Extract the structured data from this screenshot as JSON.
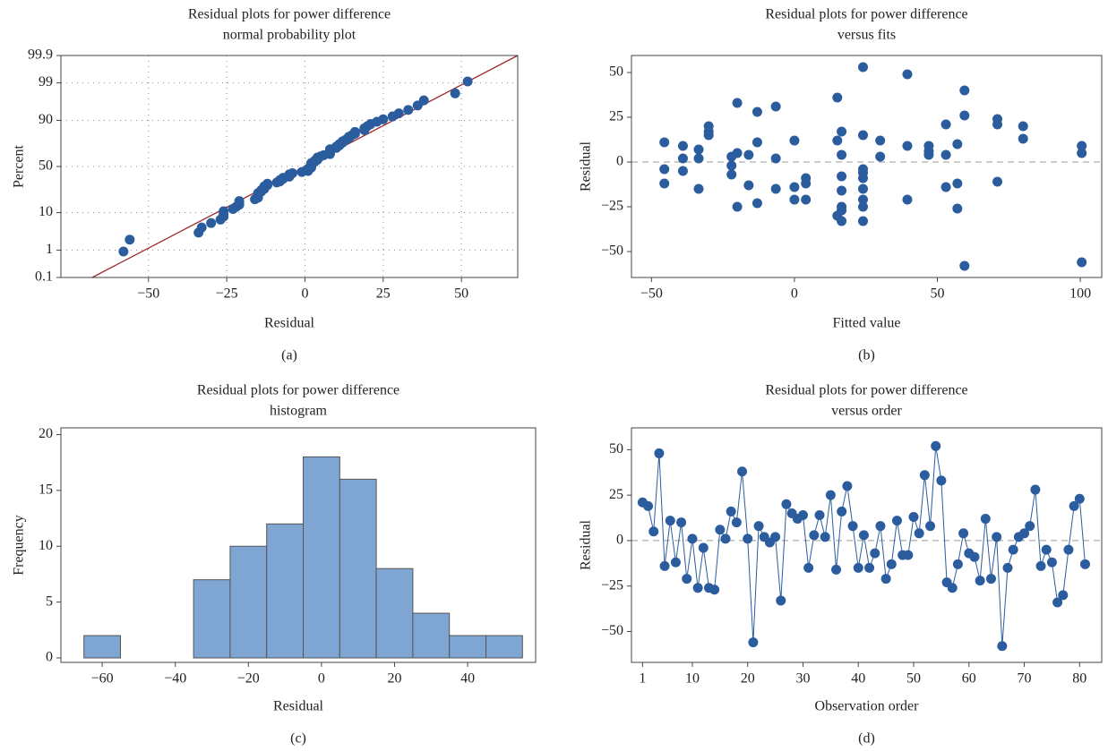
{
  "chart_data": [
    {
      "type": "probability",
      "title": "Residual plots for power difference",
      "subtitle": "normal probability plot",
      "x_label": "Residual",
      "y_label": "Percent",
      "caption": "(a)",
      "yscale": "normal",
      "grid": true,
      "color": "#2b5d9e",
      "xlim": [
        -78,
        68
      ],
      "ylim": [
        0.1,
        99.9
      ],
      "xticks": [
        {
          "value": -50,
          "label": "−50"
        },
        {
          "value": -25,
          "label": "−25"
        },
        0,
        25,
        50
      ],
      "yticks": [
        0.1,
        1,
        10,
        50,
        90,
        99,
        99.9
      ],
      "fit_line": {
        "color": "#9e2a2b",
        "x": [
          -68,
          68
        ],
        "y": [
          0.1,
          99.9
        ]
      },
      "x": [
        -58,
        -56,
        -34,
        -33,
        -30,
        -27,
        -26,
        -26,
        -26,
        -23,
        -22,
        -21,
        -21,
        -21,
        -16,
        -15,
        -15,
        -15,
        -15,
        -14,
        -14,
        -13,
        -13,
        -13,
        -12,
        -12,
        -9,
        -8,
        -8,
        -7,
        -7,
        -5,
        -5,
        -5,
        -4,
        -1,
        1,
        1,
        1,
        2,
        2,
        2,
        2,
        2,
        3,
        3,
        4,
        4,
        4,
        5,
        6,
        8,
        8,
        8,
        8,
        8,
        10,
        10,
        11,
        11,
        12,
        12,
        13,
        14,
        14,
        15,
        16,
        16,
        19,
        19,
        20,
        21,
        23,
        25,
        28,
        30,
        33,
        36,
        38,
        48,
        52
      ],
      "values": [
        0.9,
        2.1,
        3.3,
        4.5,
        5.8,
        7.0,
        8.2,
        9.5,
        10.7,
        11.9,
        13.1,
        14.4,
        15.6,
        16.8,
        18.1,
        19.3,
        20.5,
        21.7,
        23.0,
        24.2,
        25.4,
        26.7,
        27.9,
        29.1,
        30.3,
        31.6,
        32.8,
        34.0,
        35.3,
        36.5,
        37.7,
        38.9,
        40.2,
        41.4,
        42.6,
        43.9,
        45.1,
        46.3,
        47.5,
        48.8,
        50.0,
        51.2,
        52.5,
        53.7,
        54.9,
        56.1,
        57.4,
        58.6,
        59.8,
        61.1,
        62.3,
        63.5,
        64.7,
        66.0,
        67.2,
        68.4,
        69.7,
        70.9,
        72.1,
        73.3,
        74.6,
        75.8,
        77.0,
        78.3,
        79.5,
        80.7,
        81.9,
        83.2,
        84.4,
        85.6,
        86.9,
        88.1,
        89.3,
        90.5,
        91.8,
        93.0,
        94.2,
        95.5,
        96.7,
        97.9,
        99.1
      ]
    },
    {
      "type": "scatter",
      "title": "Residual plots for power difference",
      "subtitle": "versus fits",
      "x_label": "Fitted value",
      "y_label": "Residual",
      "caption": "(b)",
      "color": "#2b5d9e",
      "reference_line": 0,
      "xlim": [
        -57,
        107.5
      ],
      "ylim": [
        -64.5,
        59.5
      ],
      "xticks": [
        {
          "value": -50,
          "label": "−50"
        },
        0,
        50,
        100
      ],
      "yticks": [
        {
          "value": -50,
          "label": "−50"
        },
        {
          "value": -25,
          "label": "−25"
        },
        0,
        25,
        50
      ],
      "x": [
        -45.5,
        -45.5,
        -45.5,
        -39,
        -39,
        -39,
        -33.5,
        -33.5,
        -33.5,
        -30,
        -30,
        -30,
        -22,
        -22,
        -22,
        -20,
        -20,
        -20,
        -16,
        -16,
        -13,
        -13,
        -13,
        -6.5,
        -6.5,
        -6.5,
        0,
        0,
        0,
        4,
        4,
        4,
        15,
        15,
        15,
        16.5,
        16.5,
        16.5,
        16.5,
        16.5,
        16.5,
        16.5,
        24,
        24,
        24,
        24,
        24,
        24,
        24,
        24,
        24,
        30,
        30,
        39.5,
        39.5,
        39.5,
        47,
        47,
        47,
        53,
        53,
        53,
        57,
        57,
        57,
        59.5,
        59.5,
        59.5,
        71,
        71,
        71,
        80,
        80,
        100.5,
        100.5,
        100.5
      ],
      "values": [
        11,
        -4,
        -12,
        9,
        2,
        -5,
        7,
        2,
        -15,
        20,
        17,
        15,
        3,
        -2,
        -7,
        33,
        5,
        -25,
        4,
        -13,
        28,
        11,
        -23,
        31,
        2,
        -15,
        12,
        -14,
        -21,
        -9,
        -12,
        -21,
        36,
        12,
        -30,
        17,
        4,
        -8,
        -16,
        -25,
        -33,
        -27,
        53,
        15,
        -4,
        -6,
        -9,
        -15,
        -21,
        -25,
        -33,
        12,
        3,
        49,
        9,
        -21,
        9,
        6,
        4,
        21,
        4,
        -14,
        10,
        -12,
        -26,
        40,
        26,
        -58,
        24,
        21,
        -11,
        20,
        13,
        9,
        5,
        -56
      ]
    },
    {
      "type": "histogram",
      "title": "Residual plots for power difference",
      "subtitle": "histogram",
      "x_label": "Residual",
      "y_label": "Frequency",
      "caption": "(c)",
      "color": "#7fa5d3",
      "xlim": [
        -71.3,
        58.6
      ],
      "ylim": [
        -0.4,
        20.6
      ],
      "xticks": [
        {
          "value": -60,
          "label": "−60"
        },
        {
          "value": -40,
          "label": "−40"
        },
        {
          "value": -20,
          "label": "−20"
        },
        0,
        20,
        40
      ],
      "yticks": [
        0,
        5,
        10,
        15,
        20
      ],
      "bins": [
        -65,
        -55,
        -45,
        -35,
        -25,
        -15,
        -5,
        5,
        15,
        25,
        35,
        45,
        55
      ],
      "values": [
        2,
        0,
        0,
        7,
        10,
        12,
        18,
        16,
        8,
        4,
        2,
        2
      ]
    },
    {
      "type": "line",
      "title": "Residual plots for power difference",
      "subtitle": "versus order",
      "x_label": "Observation order",
      "y_label": "Residual",
      "caption": "(d)",
      "color": "#2b5d9e",
      "reference_line": 0,
      "xlim": [
        -1,
        84
      ],
      "ylim": [
        -67,
        62
      ],
      "xticks": [
        1,
        10,
        20,
        30,
        40,
        50,
        60,
        70,
        80
      ],
      "yticks": [
        {
          "value": -50,
          "label": "−50"
        },
        {
          "value": -25,
          "label": "−25"
        },
        0,
        25,
        50
      ],
      "x": [
        1,
        2,
        3,
        4,
        5,
        6,
        7,
        8,
        9,
        10,
        11,
        12,
        13,
        14,
        15,
        16,
        17,
        18,
        19,
        20,
        21,
        22,
        23,
        24,
        25,
        26,
        27,
        28,
        29,
        30,
        31,
        32,
        33,
        34,
        35,
        36,
        37,
        38,
        39,
        40,
        41,
        42,
        43,
        44,
        45,
        46,
        47,
        48,
        49,
        50,
        51,
        52,
        53,
        54,
        55,
        56,
        57,
        58,
        59,
        60,
        61,
        62,
        63,
        64,
        65,
        66,
        67,
        68,
        69,
        70,
        71,
        72,
        73,
        74,
        75,
        76,
        77,
        78,
        79,
        80,
        81
      ],
      "values": [
        21,
        19,
        5,
        48,
        -14,
        11,
        -12,
        10,
        -21,
        1,
        -26,
        -4,
        -26,
        -27,
        6,
        1,
        16,
        10,
        38,
        1,
        -56,
        8,
        2,
        -1,
        2,
        -33,
        20,
        15,
        12,
        14,
        -15,
        3,
        14,
        2,
        25,
        -16,
        16,
        30,
        8,
        -15,
        3,
        -15,
        -7,
        8,
        -21,
        -13,
        11,
        -8,
        -8,
        13,
        4,
        36,
        8,
        52,
        33,
        -23,
        -26,
        -13,
        4,
        -7,
        -9,
        -22,
        12,
        -21,
        2,
        -58,
        -15,
        -5,
        2,
        4,
        8,
        28,
        -14,
        -5,
        -12,
        -34,
        -30,
        -5,
        19,
        23,
        -13
      ]
    }
  ]
}
